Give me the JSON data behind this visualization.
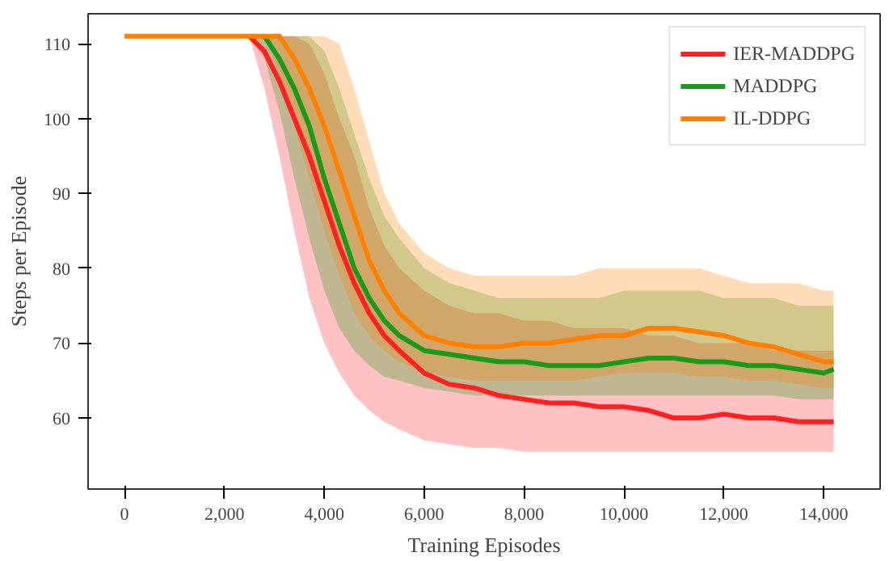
{
  "chart_data": {
    "type": "line",
    "xlabel": "Training Episodes",
    "ylabel": "Steps per Episode",
    "x": [
      0,
      2000,
      2500,
      2800,
      3100,
      3400,
      3700,
      4000,
      4300,
      4600,
      4900,
      5200,
      5500,
      6000,
      6500,
      7000,
      7500,
      8000,
      8500,
      9000,
      9500,
      10000,
      10500,
      11000,
      11500,
      12000,
      12500,
      13000,
      13500,
      14000,
      14200
    ],
    "series": [
      {
        "name": "IER-MADDPG",
        "color": "#ff2020",
        "values": [
          null,
          null,
          111,
          109,
          105,
          100,
          95,
          89,
          83,
          78,
          74,
          71,
          69,
          66,
          64.5,
          64,
          63,
          62.5,
          62,
          62,
          61.5,
          61.5,
          61,
          60,
          60,
          60.5,
          60,
          60,
          59.5,
          59.5,
          59.5
        ],
        "lower": [
          111,
          111,
          111,
          104,
          95,
          85,
          76,
          70,
          66,
          63,
          61,
          59.5,
          58.5,
          57,
          56.5,
          56,
          56,
          55.5,
          55.5,
          55.5,
          55.5,
          55.5,
          55.5,
          55.5,
          55.5,
          55.5,
          55.5,
          55.5,
          55.5,
          55.5,
          55.5
        ],
        "upper": [
          111,
          111,
          111,
          111,
          111,
          111,
          110,
          106,
          100,
          95,
          88,
          83,
          80,
          77,
          75,
          74,
          74,
          73,
          73,
          72,
          72,
          72,
          71,
          71,
          70,
          70,
          70,
          69,
          69,
          69,
          69
        ]
      },
      {
        "name": "MADDPG",
        "color": "#1a9a1a",
        "values": [
          null,
          null,
          null,
          111,
          108,
          104,
          99,
          92,
          86,
          80,
          76,
          73,
          71,
          69,
          68.5,
          68,
          67.5,
          67.5,
          67,
          67,
          67,
          67.5,
          68,
          68,
          67.5,
          67.5,
          67,
          67,
          66.5,
          66,
          66.5
        ],
        "lower": [
          111,
          111,
          111,
          108,
          101,
          92,
          84,
          77,
          72,
          69,
          67,
          65.5,
          65,
          64,
          63.5,
          63,
          63,
          63,
          63,
          63,
          63,
          63,
          63,
          63,
          63,
          63,
          63,
          63,
          62.5,
          62.5,
          62.5
        ],
        "upper": [
          111,
          111,
          111,
          111,
          111,
          111,
          111,
          109,
          104,
          98,
          92,
          87,
          84,
          80,
          78,
          77,
          76,
          76,
          76,
          76,
          76,
          77,
          77,
          77,
          77,
          76,
          76,
          76,
          75,
          75,
          75
        ]
      },
      {
        "name": "IL-DDPG",
        "color": "#ff8000",
        "values": [
          111,
          111,
          111,
          111,
          111,
          108,
          104,
          99,
          93,
          87,
          81,
          77,
          74,
          71,
          70,
          69.5,
          69.5,
          70,
          70,
          70.5,
          71,
          71,
          72,
          72,
          71.5,
          71,
          70,
          69.5,
          68.5,
          67.5,
          67.5
        ],
        "lower": [
          111,
          111,
          111,
          111,
          106,
          99,
          92,
          85,
          79,
          74,
          71,
          69,
          67.5,
          66,
          65.5,
          65,
          65,
          65,
          65,
          65,
          65.5,
          66,
          66,
          66,
          65.5,
          65.5,
          65,
          65,
          64.5,
          64,
          64
        ],
        "upper": [
          111,
          111,
          111,
          111,
          111,
          111,
          111,
          111,
          110,
          104,
          97,
          90,
          86,
          82,
          80,
          79,
          79,
          79,
          79,
          79,
          80,
          80,
          80,
          80,
          80,
          79,
          78,
          78,
          78,
          77,
          77
        ]
      }
    ],
    "xlim": [
      -730,
      15130
    ],
    "ylim": [
      50.5,
      114
    ],
    "xticks": [
      {
        "value": 0,
        "label": "0"
      },
      {
        "value": 2000,
        "label": "2,000"
      },
      {
        "value": 4000,
        "label": "4,000"
      },
      {
        "value": 6000,
        "label": "6,000"
      },
      {
        "value": 8000,
        "label": "8,000"
      },
      {
        "value": 10000,
        "label": "10,000"
      },
      {
        "value": 12000,
        "label": "12,000"
      },
      {
        "value": 14000,
        "label": "14,000"
      }
    ],
    "yticks": [
      60,
      70,
      80,
      90,
      100,
      110
    ],
    "grid": false,
    "legend": "top right",
    "line_style": "solid",
    "marker": "none"
  }
}
